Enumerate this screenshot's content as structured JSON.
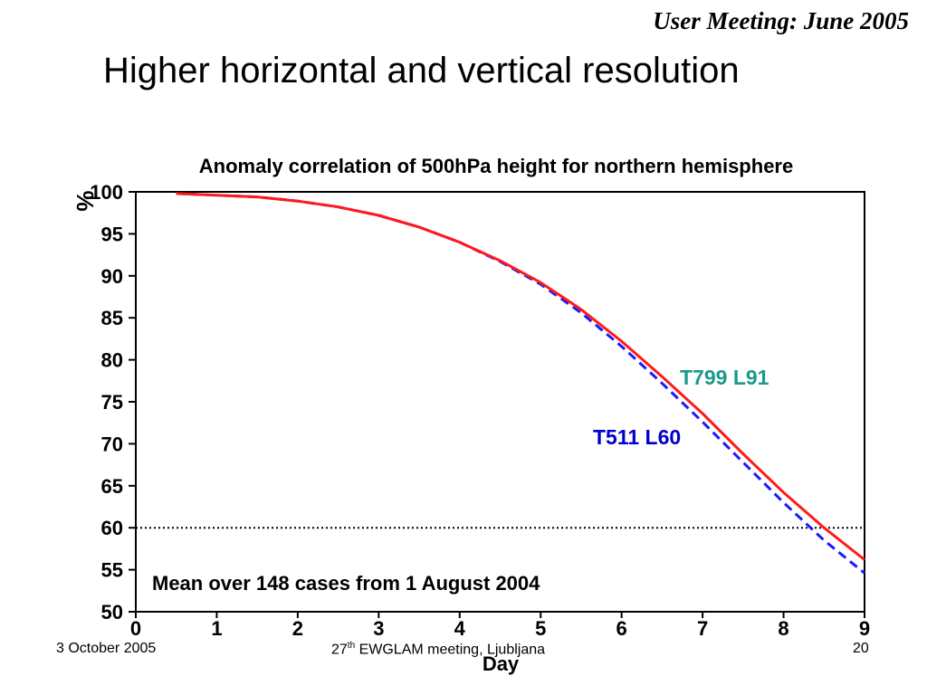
{
  "header": {
    "meeting": "User Meeting: June 2005"
  },
  "slide": {
    "title": "Higher horizontal and vertical resolution"
  },
  "chart_data": {
    "type": "line",
    "title": "Anomaly correlation of 500hPa height for northern hemisphere",
    "xlabel": "Day",
    "ylabel": "%",
    "xlim": [
      0,
      9
    ],
    "ylim": [
      50,
      100
    ],
    "xticks": [
      0,
      1,
      2,
      3,
      4,
      5,
      6,
      7,
      8,
      9
    ],
    "yticks": [
      50,
      55,
      60,
      65,
      70,
      75,
      80,
      85,
      90,
      95,
      100
    ],
    "reference_line": {
      "y": 60,
      "style": "dotted"
    },
    "grid": false,
    "series": [
      {
        "name": "T799 L91",
        "color": "#ff1a1a",
        "style": "solid",
        "x": [
          0.5,
          1,
          1.5,
          2,
          2.5,
          3,
          3.5,
          4,
          4.5,
          5,
          5.5,
          6,
          6.5,
          7,
          7.5,
          8,
          8.5,
          9
        ],
        "y": [
          99.8,
          99.6,
          99.4,
          98.9,
          98.2,
          97.2,
          95.8,
          94.0,
          91.8,
          89.2,
          86.0,
          82.2,
          78.0,
          73.6,
          68.8,
          64.2,
          60.0,
          56.2
        ]
      },
      {
        "name": "T511 L60",
        "color": "#1a1aff",
        "style": "dashed",
        "x": [
          0.5,
          1,
          1.5,
          2,
          2.5,
          3,
          3.5,
          4,
          4.5,
          5,
          5.5,
          6,
          6.5,
          7,
          7.5,
          8,
          8.5,
          9
        ],
        "y": [
          99.8,
          99.6,
          99.4,
          98.9,
          98.2,
          97.2,
          95.8,
          94.0,
          91.7,
          89.0,
          85.6,
          81.6,
          77.2,
          72.6,
          67.8,
          63.0,
          58.5,
          54.6
        ]
      }
    ],
    "annotation": "Mean over 148 cases from 1 August 2004"
  },
  "footer": {
    "date": "3 October 2005",
    "meeting_number": "27",
    "meeting_suffix": "th",
    "meeting_rest": " EWGLAM meeting, Ljubljana",
    "page": "20"
  },
  "colors": {
    "t799": "#ff1a1a",
    "t511": "#1a1aff",
    "t799_label": "#1a9a8a",
    "t511_label": "#0000cc"
  }
}
